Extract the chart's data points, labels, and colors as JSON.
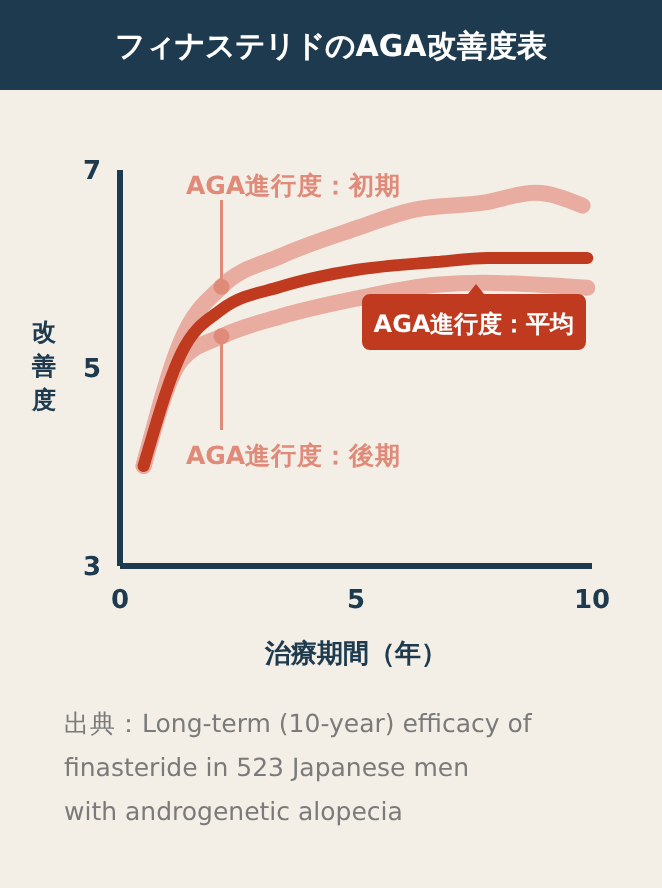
{
  "chart_data": {
    "type": "line",
    "title": "フィナステリドのAGA改善度表",
    "xlabel": "治療期間（年）",
    "ylabel": "改善度",
    "xlim": [
      0,
      10
    ],
    "ylim": [
      3,
      7
    ],
    "xticks": [
      0,
      5,
      10
    ],
    "yticks": [
      3,
      5,
      7
    ],
    "grid": false,
    "marker": "none",
    "line_style": "solid",
    "annotations": [
      "出典：Long-term (10-year) efficacy of finasteride in 523 Japanese men with androgenetic alopecia"
    ],
    "series": [
      {
        "name": "AGA進行度：初期",
        "color": "#e8ada0",
        "x": [
          0.5,
          1.3,
          2.15,
          3.4,
          5,
          6.25,
          7.7,
          8.8,
          9.8
        ],
        "values": [
          4.01,
          5.28,
          5.82,
          6.13,
          6.41,
          6.6,
          6.67,
          6.77,
          6.64
        ]
      },
      {
        "name": "AGA進行度：後期",
        "color": "#e8ada0",
        "x": [
          0.5,
          1.3,
          2.15,
          3.4,
          5,
          6.7,
          7.7,
          9.9
        ],
        "values": [
          4.01,
          5.08,
          5.32,
          5.52,
          5.7,
          5.84,
          5.86,
          5.81
        ]
      },
      {
        "name": "AGA進行度：平均",
        "color": "#bf3a1e",
        "x": [
          0.5,
          1.3,
          2.15,
          3.4,
          5,
          6.7,
          7.8,
          9.9
        ],
        "values": [
          4.01,
          5.15,
          5.59,
          5.82,
          5.99,
          6.07,
          6.11,
          6.11
        ]
      }
    ]
  }
}
